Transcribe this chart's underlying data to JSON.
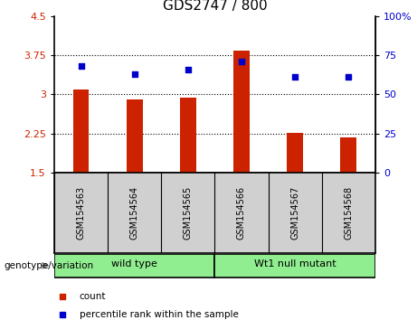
{
  "title": "GDS2747 / 800",
  "samples": [
    "GSM154563",
    "GSM154564",
    "GSM154565",
    "GSM154566",
    "GSM154567",
    "GSM154568"
  ],
  "bar_values": [
    3.1,
    2.91,
    2.93,
    3.84,
    2.26,
    2.17
  ],
  "percentile_values": [
    68,
    63,
    66,
    71,
    61,
    61
  ],
  "ylim_left": [
    1.5,
    4.5
  ],
  "ylim_right": [
    0,
    100
  ],
  "yticks_left": [
    1.5,
    2.25,
    3.0,
    3.75,
    4.5
  ],
  "yticks_right": [
    0,
    25,
    50,
    75,
    100
  ],
  "ytick_labels_left": [
    "1.5",
    "2.25",
    "3",
    "3.75",
    "4.5"
  ],
  "ytick_labels_right": [
    "0",
    "25",
    "50",
    "75",
    "100%"
  ],
  "bar_color": "#cc2200",
  "point_color": "#0000cc",
  "bar_width": 0.3,
  "groups": [
    {
      "label": "wild type",
      "samples": [
        0,
        1,
        2
      ],
      "color": "#90EE90"
    },
    {
      "label": "Wt1 null mutant",
      "samples": [
        3,
        4,
        5
      ],
      "color": "#90EE90"
    }
  ],
  "group_label_prefix": "genotype/variation",
  "legend_items": [
    {
      "label": "count",
      "color": "#cc2200"
    },
    {
      "label": "percentile rank within the sample",
      "color": "#0000cc"
    }
  ],
  "tick_label_area_color": "#d0d0d0",
  "title_fontsize": 11,
  "tick_fontsize": 8,
  "sample_label_fontsize": 7
}
